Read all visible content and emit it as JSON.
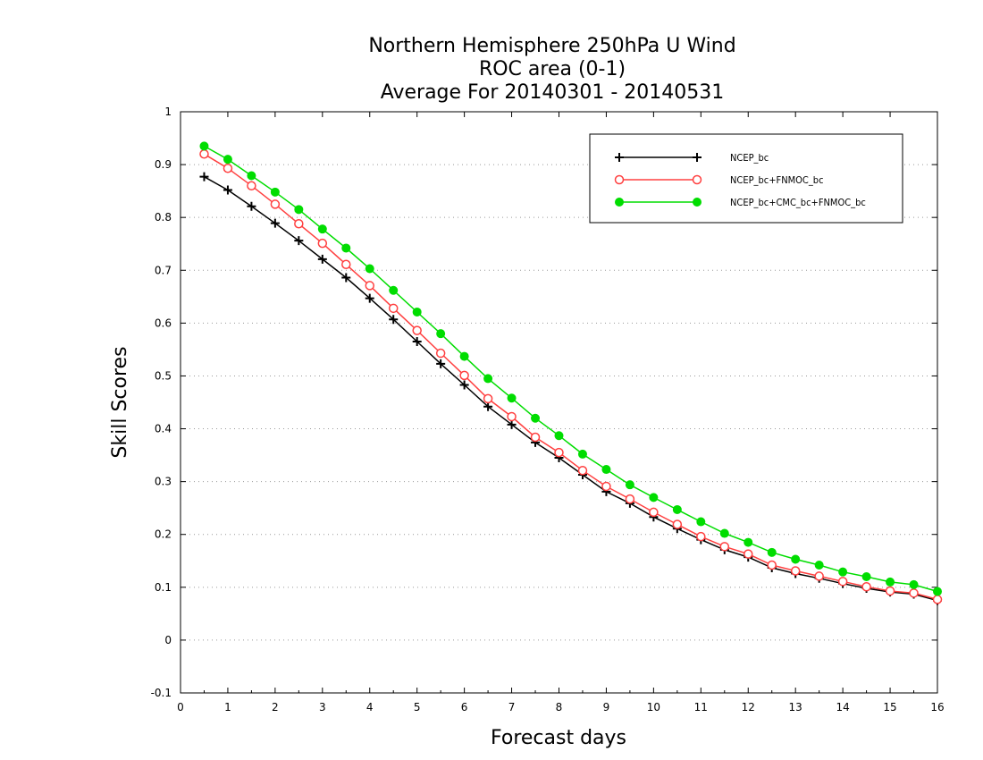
{
  "chart_data": {
    "type": "line",
    "title": [
      "Northern Hemisphere 250hPa U Wind",
      "ROC area (0-1)",
      "Average For 20140301 - 20140531"
    ],
    "xlabel": "Forecast days",
    "ylabel": "Skill Scores",
    "xlim": [
      0,
      16
    ],
    "ylim": [
      -0.1,
      1
    ],
    "xticks": [
      0,
      1,
      2,
      3,
      4,
      5,
      6,
      7,
      8,
      9,
      10,
      11,
      12,
      13,
      14,
      15,
      16
    ],
    "xtick_labels": [
      "0",
      "1",
      "2",
      "3",
      "4",
      "5",
      "6",
      "7",
      "8",
      "9",
      "10",
      "11",
      "12",
      "13",
      "14",
      "15",
      "16"
    ],
    "yticks": [
      -0.1,
      0,
      0.1,
      0.2,
      0.3,
      0.4,
      0.5,
      0.6,
      0.7,
      0.8,
      0.9,
      1
    ],
    "ytick_labels": [
      "-0.1",
      "0",
      "0.1",
      "0.2",
      "0.3",
      "0.4",
      "0.5",
      "0.6",
      "0.7",
      "0.8",
      "0.9",
      "1"
    ],
    "grid": "horizontal-dotted",
    "legend_position": "top-right",
    "x": [
      0.5,
      1,
      1.5,
      2,
      2.5,
      3,
      3.5,
      4,
      4.5,
      5,
      5.5,
      6,
      6.5,
      7,
      7.5,
      8,
      8.5,
      9,
      9.5,
      10,
      10.5,
      11,
      11.5,
      12,
      12.5,
      13,
      13.5,
      14,
      14.5,
      15,
      15.5,
      16
    ],
    "series": [
      {
        "name": "NCEP_bc",
        "color": "#000000",
        "marker": "plus",
        "values": [
          0.877,
          0.852,
          0.821,
          0.789,
          0.756,
          0.721,
          0.686,
          0.647,
          0.607,
          0.565,
          0.523,
          0.483,
          0.442,
          0.408,
          0.374,
          0.345,
          0.313,
          0.281,
          0.259,
          0.233,
          0.211,
          0.19,
          0.171,
          0.157,
          0.137,
          0.126,
          0.117,
          0.107,
          0.098,
          0.091,
          0.087,
          0.075
        ]
      },
      {
        "name": "NCEP_bc+FNMOC_bc",
        "color": "#ff4040",
        "marker": "open-circle",
        "values": [
          0.92,
          0.893,
          0.86,
          0.825,
          0.788,
          0.751,
          0.711,
          0.671,
          0.628,
          0.586,
          0.543,
          0.501,
          0.457,
          0.423,
          0.384,
          0.355,
          0.321,
          0.291,
          0.267,
          0.242,
          0.219,
          0.196,
          0.177,
          0.163,
          0.142,
          0.131,
          0.121,
          0.111,
          0.101,
          0.093,
          0.089,
          0.077
        ]
      },
      {
        "name": "NCEP_bc+CMC_bc+FNMOC_bc",
        "color": "#00dd00",
        "marker": "filled-circle",
        "values": [
          0.935,
          0.91,
          0.879,
          0.848,
          0.815,
          0.778,
          0.742,
          0.703,
          0.662,
          0.621,
          0.58,
          0.537,
          0.495,
          0.458,
          0.42,
          0.387,
          0.352,
          0.323,
          0.294,
          0.27,
          0.247,
          0.224,
          0.202,
          0.185,
          0.166,
          0.153,
          0.142,
          0.129,
          0.12,
          0.11,
          0.105,
          0.092
        ]
      }
    ]
  }
}
